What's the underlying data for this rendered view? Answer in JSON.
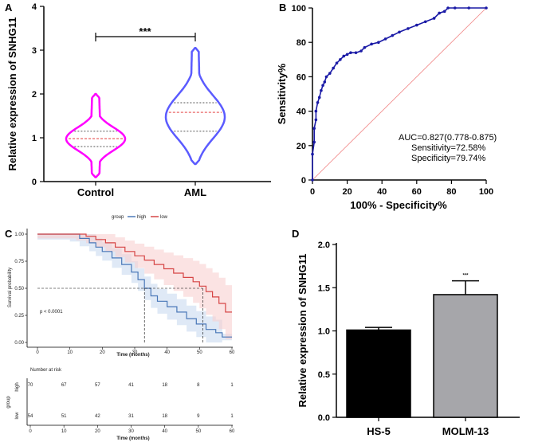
{
  "panels": {
    "a": "A",
    "b": "B",
    "c": "C",
    "d": "D"
  },
  "chart_data": [
    {
      "id": "A",
      "type": "violin",
      "ylabel": "Relative expression of SNHG11",
      "categories": [
        "Control",
        "AML"
      ],
      "yticks": [
        "0",
        "1",
        "2",
        "3",
        "4"
      ],
      "ylim": [
        0,
        4
      ],
      "significance": "***",
      "colors": [
        "#ff00ff",
        "#5b5bff"
      ],
      "stats": [
        {
          "name": "Control",
          "min": 0.1,
          "max": 2.0,
          "q1": 0.8,
          "median": 0.98,
          "q3": 1.15
        },
        {
          "name": "AML",
          "min": 0.4,
          "max": 3.05,
          "q1": 1.15,
          "median": 1.58,
          "q3": 1.8
        }
      ]
    },
    {
      "id": "B",
      "type": "line",
      "xlabel": "100% - Specificity%",
      "ylabel": "Sensitivity%",
      "xticks": [
        "0",
        "20",
        "40",
        "60",
        "80",
        "100"
      ],
      "yticks": [
        "0",
        "20",
        "40",
        "60",
        "80",
        "100"
      ],
      "xlim": [
        0,
        100
      ],
      "ylim": [
        0,
        100
      ],
      "annotations": [
        "AUC=0.827(0.778-0.875)",
        "Sensitivity=72.58%",
        "Specificity=79.74%"
      ],
      "line_color": "#1a1aa6",
      "ref_color": "#f08080",
      "x": [
        0,
        0,
        1,
        1,
        2,
        2,
        3,
        4,
        5,
        6,
        7,
        8,
        10,
        12,
        14,
        16,
        18,
        20,
        22,
        25,
        28,
        30,
        34,
        38,
        42,
        46,
        50,
        55,
        60,
        65,
        70,
        73,
        76,
        78,
        82,
        90,
        100
      ],
      "y": [
        0,
        15,
        22,
        30,
        35,
        40,
        45,
        48,
        52,
        55,
        57,
        60,
        62,
        65,
        68,
        70,
        72,
        73,
        74,
        74,
        75,
        77,
        79,
        80,
        82,
        84,
        86,
        88,
        90,
        92,
        94,
        97,
        98,
        100,
        100,
        100,
        100
      ]
    },
    {
      "id": "C",
      "type": "line",
      "legend_title": "group",
      "legend": [
        "high",
        "low"
      ],
      "xlabel": "Time (months)",
      "ylabel": "Survival probability",
      "xticks": [
        "0",
        "10",
        "20",
        "30",
        "40",
        "50",
        "60"
      ],
      "yticks": [
        "0.00",
        "0.25",
        "0.50",
        "0.75",
        "1.00"
      ],
      "xlim": [
        0,
        60
      ],
      "ylim": [
        0,
        1
      ],
      "pvalue": "p < 0.0001",
      "series": [
        {
          "name": "high",
          "color": "#4a78b8",
          "x": [
            0,
            10,
            13,
            16,
            18,
            20,
            23,
            26,
            29,
            31,
            33,
            35,
            37,
            40,
            43,
            46,
            49,
            52,
            55,
            57,
            60
          ],
          "y": [
            1.0,
            1.0,
            0.96,
            0.92,
            0.88,
            0.84,
            0.78,
            0.72,
            0.65,
            0.58,
            0.5,
            0.43,
            0.38,
            0.33,
            0.28,
            0.22,
            0.17,
            0.12,
            0.09,
            0.05,
            0.05
          ]
        },
        {
          "name": "low",
          "color": "#d64545",
          "x": [
            0,
            12,
            15,
            18,
            21,
            24,
            27,
            30,
            33,
            36,
            39,
            42,
            45,
            48,
            50,
            52,
            54,
            56,
            58,
            60
          ],
          "y": [
            1.0,
            1.0,
            0.98,
            0.95,
            0.92,
            0.88,
            0.84,
            0.8,
            0.76,
            0.72,
            0.68,
            0.64,
            0.6,
            0.56,
            0.52,
            0.47,
            0.42,
            0.36,
            0.28,
            0.28
          ]
        }
      ],
      "risk_table": {
        "title": "Number at risk",
        "ylabel": "group",
        "times": [
          "0",
          "10",
          "20",
          "30",
          "40",
          "50",
          "60"
        ],
        "rows": [
          {
            "name": "high",
            "values": [
              "70",
              "67",
              "57",
              "41",
              "18",
              "8",
              "1"
            ]
          },
          {
            "name": "low",
            "values": [
              "54",
              "51",
              "42",
              "31",
              "18",
              "9",
              "1"
            ]
          }
        ],
        "xlabel": "Time (months)"
      }
    },
    {
      "id": "D",
      "type": "bar",
      "ylabel": "Relative expression of SNHG11",
      "categories": [
        "HS-5",
        "MOLM-13"
      ],
      "values": [
        1.01,
        1.42
      ],
      "errors": [
        0.03,
        0.16
      ],
      "colors": [
        "#000000",
        "#a6a6aa"
      ],
      "yticks": [
        "0.0",
        "0.5",
        "1.0",
        "1.5",
        "2.0"
      ],
      "ylim": [
        0,
        2
      ],
      "significance": "***"
    }
  ]
}
